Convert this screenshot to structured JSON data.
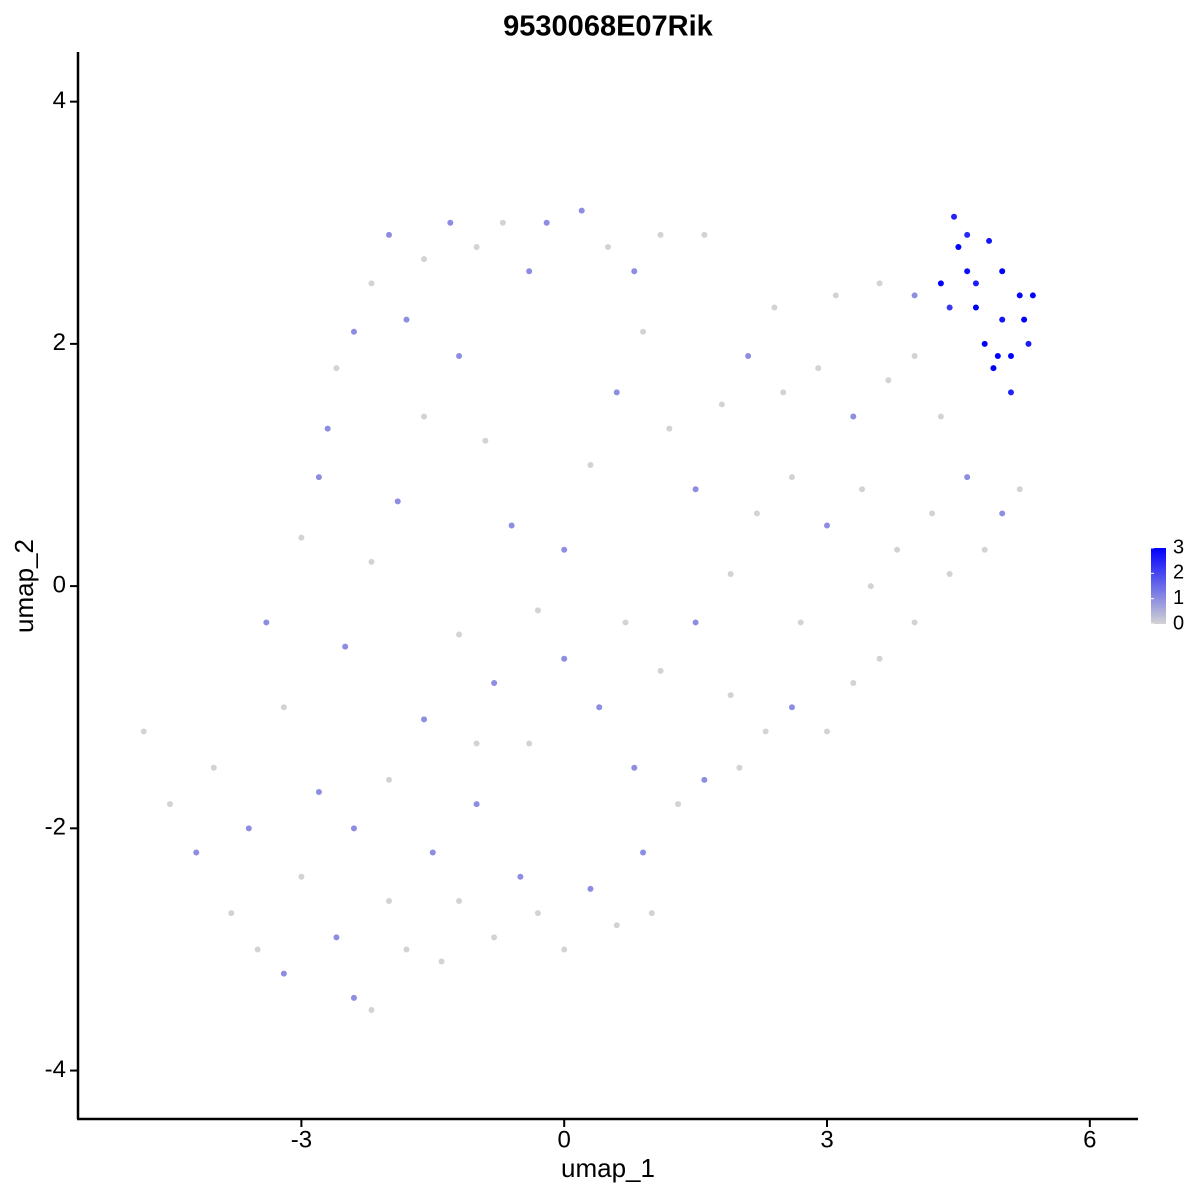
{
  "chart_data": {
    "type": "scatter",
    "title": "9530068E07Rik",
    "x_label": "umap_1",
    "y_label": "umap_2",
    "xlim": [
      -5.55,
      6.55
    ],
    "ylim": [
      -4.4,
      4.41
    ],
    "xticks": [
      -3,
      0,
      3,
      6
    ],
    "yticks": [
      -4,
      -2,
      0,
      2,
      4
    ],
    "color_low": "#d3d3d3",
    "color_high": "#0000ff",
    "colorbar_lim": [
      0,
      3
    ],
    "colorbar_ticks": [
      0,
      1,
      2,
      3
    ],
    "x": [
      -4.8,
      -4.5,
      -4.2,
      -4.0,
      -3.8,
      -3.6,
      -3.5,
      -3.2,
      -3.0,
      -2.8,
      -2.6,
      -2.4,
      -2.2,
      -2.0,
      -1.8,
      -1.5,
      -1.4,
      -1.2,
      -1.0,
      -0.8,
      -0.5,
      -0.3,
      0,
      0.3,
      0.6,
      0.9,
      1.0,
      1.3,
      1.6,
      2.0,
      2.3,
      2.6,
      3.0,
      3.3,
      3.6,
      4.0,
      4.4,
      4.8,
      5.2,
      5.0,
      -3.4,
      -3.0,
      -2.8,
      -2.7,
      -2.6,
      -2.4,
      -2.2,
      -2.0,
      -1.8,
      -1.6,
      -1.3,
      -1.0,
      -0.7,
      -0.4,
      -0.2,
      0.2,
      0.5,
      0.8,
      1.1,
      1.6,
      -3.2,
      -2.5,
      -2.2,
      -1.9,
      -1.6,
      -1.2,
      -0.9,
      -0.6,
      -0.3,
      0,
      0.3,
      0.6,
      0.9,
      1.2,
      1.5,
      1.8,
      2.1,
      2.5,
      2.9,
      3.3,
      3.7,
      4.0,
      4.3,
      4.6,
      4.2,
      3.8,
      3.4,
      3.0,
      2.6,
      2.2,
      1.9,
      1.5,
      1.1,
      0.7,
      0.4,
      0.0,
      -0.4,
      -0.8,
      -1.2,
      -1.6,
      -2.0,
      -2.4,
      -1.0,
      0.8,
      1.9,
      2.7,
      3.5,
      2.4,
      3.1,
      3.6,
      4.0,
      4.3,
      4.45,
      4.5,
      4.6,
      4.7,
      4.8,
      4.9,
      5.0,
      5.1,
      5.2,
      5.3,
      5.35,
      5.1,
      4.6,
      4.85,
      4.4,
      5.0,
      4.95,
      4.7,
      5.25
    ],
    "values": [
      -1.2,
      -1.8,
      -2.2,
      -1.5,
      -2.7,
      -2.0,
      -3.0,
      -3.2,
      -2.4,
      -1.7,
      -2.9,
      -3.4,
      -3.5,
      -2.6,
      -3.0,
      -2.2,
      -3.1,
      -2.6,
      -1.8,
      -2.9,
      -2.4,
      -2.7,
      -3.0,
      -2.5,
      -2.8,
      -2.2,
      -2.7,
      -1.8,
      -1.6,
      -1.5,
      -1.2,
      -1.0,
      -1.2,
      -0.8,
      -0.6,
      -0.3,
      0.1,
      0.3,
      0.8,
      0.6,
      -0.3,
      0.4,
      0.9,
      1.3,
      1.8,
      2.1,
      2.5,
      2.9,
      2.2,
      2.7,
      3.0,
      2.8,
      3.0,
      2.6,
      3.0,
      3.1,
      2.8,
      2.6,
      2.9,
      2.9,
      -1.0,
      -0.5,
      0.2,
      0.7,
      1.4,
      1.9,
      1.2,
      0.5,
      -0.2,
      0.3,
      1.0,
      1.6,
      2.1,
      1.3,
      0.8,
      1.5,
      1.9,
      1.6,
      1.8,
      1.4,
      1.7,
      1.9,
      1.4,
      0.9,
      0.6,
      0.3,
      0.8,
      0.5,
      0.9,
      0.6,
      0.1,
      -0.3,
      -0.7,
      -0.3,
      -1.0,
      -0.6,
      -1.3,
      -0.8,
      -0.4,
      -1.1,
      -1.6,
      -2.0,
      -1.3,
      -1.5,
      -0.9,
      -0.3,
      0.0,
      2.3,
      2.4,
      2.5,
      2.4,
      2.5,
      3.05,
      2.8,
      2.6,
      2.3,
      2.0,
      1.8,
      2.2,
      1.9,
      2.4,
      2.0,
      2.4,
      1.6,
      2.9,
      2.85,
      2.3,
      2.6,
      1.9,
      2.5,
      2.2
    ],
    "expression": [
      0,
      0,
      1,
      0,
      0,
      1,
      0,
      1,
      0,
      1,
      1,
      1,
      0,
      0,
      0,
      1,
      0,
      0,
      1,
      0,
      1,
      0,
      0,
      1,
      0,
      1,
      0,
      0,
      1,
      0,
      0,
      1,
      0,
      0,
      0,
      0,
      0,
      0,
      0,
      1,
      1,
      0,
      1,
      1,
      0,
      1,
      0,
      1,
      1,
      0,
      1,
      0,
      0,
      1,
      1,
      1,
      0,
      1,
      0,
      0,
      0,
      1,
      0,
      1,
      0,
      1,
      0,
      1,
      0,
      1,
      0,
      1,
      0,
      0,
      1,
      0,
      1,
      0,
      0,
      1,
      0,
      0,
      0,
      1,
      0,
      0,
      0,
      1,
      0,
      0,
      0,
      1,
      0,
      0,
      1,
      1,
      0,
      1,
      0,
      1,
      0,
      1,
      0,
      1,
      0,
      0,
      0,
      0,
      0,
      0,
      1,
      3,
      2.5,
      3,
      2.8,
      3,
      3,
      3,
      2.7,
      3,
      2.9,
      2.6,
      3,
      2.5,
      2.4,
      2.7,
      2.2,
      3,
      3,
      2.6,
      3
    ]
  }
}
